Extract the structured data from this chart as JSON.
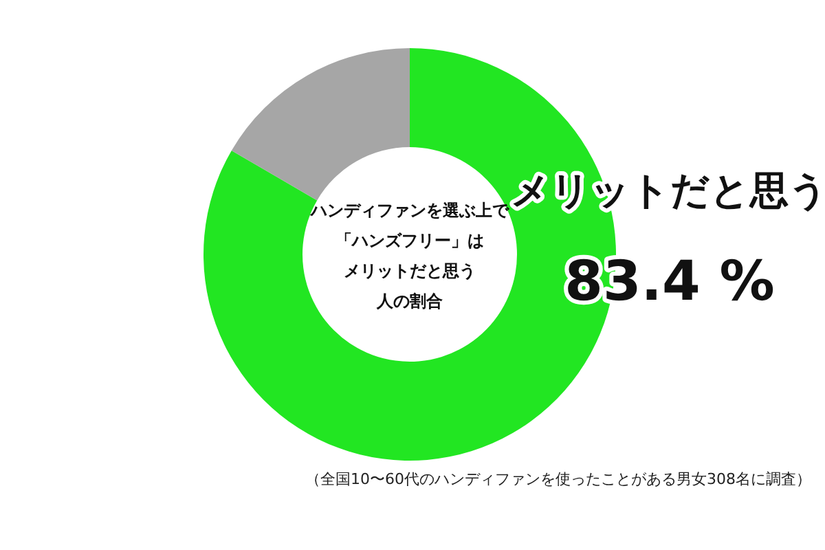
{
  "chart_data": {
    "type": "donut",
    "title": "ハンディファンを選ぶ上で「ハンズフリー」はメリットだと思う人の割合",
    "categories": [
      "メリットだと思う",
      null
    ],
    "values": [
      83.4,
      16.6
    ],
    "colors": [
      "#22e622",
      "#a6a6a6"
    ],
    "value_labels": [
      "83.4 %",
      null
    ],
    "annotations": [
      "（全国10〜60代のハンディファンを使ったことがある男女308名に調査）"
    ]
  }
}
